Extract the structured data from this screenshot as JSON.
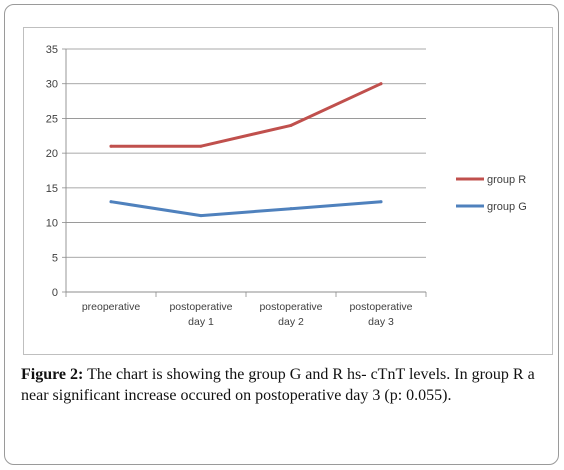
{
  "chart_data": {
    "type": "line",
    "categories": [
      [
        "preoperative"
      ],
      [
        "postoperative",
        "day 1"
      ],
      [
        "postoperative",
        "day 2"
      ],
      [
        "postoperative",
        "day 3"
      ]
    ],
    "series": [
      {
        "name": "group R",
        "values": [
          21,
          21,
          24,
          30
        ],
        "color": "#c0504d"
      },
      {
        "name": "group G",
        "values": [
          13,
          11,
          12,
          13
        ],
        "color": "#4f81bd"
      }
    ],
    "yticks": [
      0,
      5,
      10,
      15,
      20,
      25,
      30,
      35
    ],
    "ylim": [
      0,
      35
    ],
    "grid": true,
    "legend": "right"
  },
  "caption": {
    "label": "Figure 2:",
    "text": " The chart is showing the group G and R hs- cTnT levels. In group R a near significant increase occured on postoperative day 3 (p: 0.055)."
  }
}
